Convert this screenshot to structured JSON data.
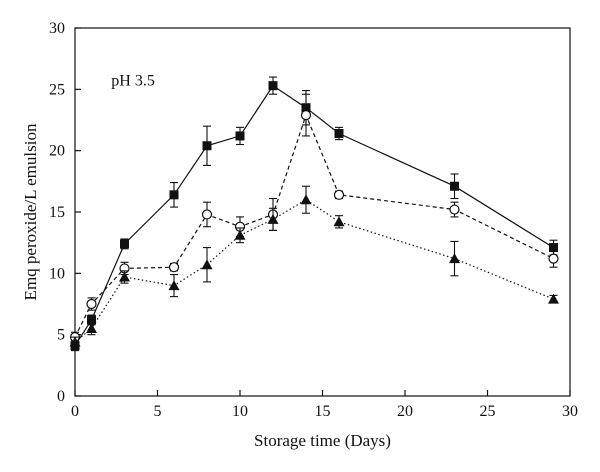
{
  "chart_data": {
    "type": "line",
    "title": "",
    "annotation": "pH 3.5",
    "xlabel": "Storage time (Days)",
    "ylabel": "Emq peroxide/L emulsion",
    "xlim": [
      0,
      30
    ],
    "ylim": [
      0,
      30
    ],
    "xticks": [
      0,
      5,
      10,
      15,
      20,
      25,
      30
    ],
    "yticks": [
      0,
      5,
      10,
      15,
      20,
      25,
      30
    ],
    "grid": false,
    "legend": "none",
    "series": [
      {
        "marker": "filled-square",
        "line": "solid",
        "color": "#111111",
        "points": [
          {
            "x": 0,
            "y": 4.1,
            "err": 0.4
          },
          {
            "x": 1,
            "y": 6.2,
            "err": 0.4
          },
          {
            "x": 3,
            "y": 12.4,
            "err": 0.4
          },
          {
            "x": 6,
            "y": 16.4,
            "err": 1.0
          },
          {
            "x": 8,
            "y": 20.4,
            "err": 1.6
          },
          {
            "x": 10,
            "y": 21.2,
            "err": 0.7
          },
          {
            "x": 12,
            "y": 25.3,
            "err": 0.7
          },
          {
            "x": 14,
            "y": 23.5,
            "err": 1.4
          },
          {
            "x": 16,
            "y": 21.4,
            "err": 0.5
          },
          {
            "x": 23,
            "y": 17.1,
            "err": 1.0
          },
          {
            "x": 29,
            "y": 12.1,
            "err": 0.6
          }
        ]
      },
      {
        "marker": "open-circle",
        "line": "dashed",
        "color": "#111111",
        "points": [
          {
            "x": 0,
            "y": 4.8,
            "err": 0.4
          },
          {
            "x": 1,
            "y": 7.5,
            "err": 0.5
          },
          {
            "x": 3,
            "y": 10.4,
            "err": 0.5
          },
          {
            "x": 6,
            "y": 10.5,
            "err": 0.3
          },
          {
            "x": 8,
            "y": 14.8,
            "err": 1.0
          },
          {
            "x": 10,
            "y": 13.8,
            "err": 0.8
          },
          {
            "x": 12,
            "y": 14.8,
            "err": 1.3
          },
          {
            "x": 14,
            "y": 22.9,
            "err": 1.7
          },
          {
            "x": 16,
            "y": 16.4,
            "err": 0.3
          },
          {
            "x": 23,
            "y": 15.2,
            "err": 0.6
          },
          {
            "x": 29,
            "y": 11.2,
            "err": 0.7
          }
        ]
      },
      {
        "marker": "filled-triangle",
        "line": "dotted",
        "color": "#111111",
        "points": [
          {
            "x": 0,
            "y": 4.4,
            "err": 0.4
          },
          {
            "x": 1,
            "y": 5.5,
            "err": 0.5
          },
          {
            "x": 3,
            "y": 9.7,
            "err": 0.5
          },
          {
            "x": 6,
            "y": 9.0,
            "err": 0.9
          },
          {
            "x": 8,
            "y": 10.7,
            "err": 1.4
          },
          {
            "x": 10,
            "y": 13.1,
            "err": 0.6
          },
          {
            "x": 12,
            "y": 14.4,
            "err": 0.9
          },
          {
            "x": 14,
            "y": 16.0,
            "err": 1.1
          },
          {
            "x": 16,
            "y": 14.2,
            "err": 0.5
          },
          {
            "x": 23,
            "y": 11.2,
            "err": 1.4
          },
          {
            "x": 29,
            "y": 7.9,
            "err": 0.3
          }
        ]
      }
    ]
  }
}
